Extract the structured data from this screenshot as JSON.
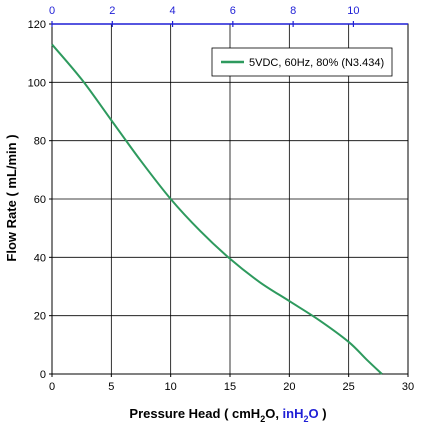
{
  "chart_data": {
    "type": "line",
    "title": "",
    "xlabel": {
      "prefix": "Pressure Head ( cmH",
      "sub1": "2",
      "mid": "O, ",
      "alt_unit": "inH",
      "sub2": "2",
      "alt_suffix": "O",
      "suffix": " )"
    },
    "ylabel": "Flow Rate ( mL/min )",
    "xlim": [
      0,
      30
    ],
    "ylim": [
      0,
      120
    ],
    "x_ticks": [
      "0",
      "5",
      "10",
      "15",
      "20",
      "25",
      "30"
    ],
    "y_ticks": [
      "0",
      "20",
      "40",
      "60",
      "80",
      "100",
      "120"
    ],
    "x2_ticks": [
      "0",
      "2",
      "4",
      "6",
      "8",
      "10"
    ],
    "x2_unit_note": "inH2O",
    "grid": true,
    "legend_position": "top-right",
    "series": [
      {
        "name": "5VDC, 60Hz, 80% (N3.434)",
        "color": "#2e9a5e",
        "x": [
          0,
          2.5,
          5,
          7.5,
          10,
          12.5,
          15,
          17.5,
          20,
          22.5,
          25,
          26.5,
          27.8
        ],
        "y": [
          113,
          101,
          87,
          73,
          60,
          49,
          39.5,
          31.5,
          25,
          18.5,
          11,
          5,
          0
        ]
      }
    ]
  }
}
